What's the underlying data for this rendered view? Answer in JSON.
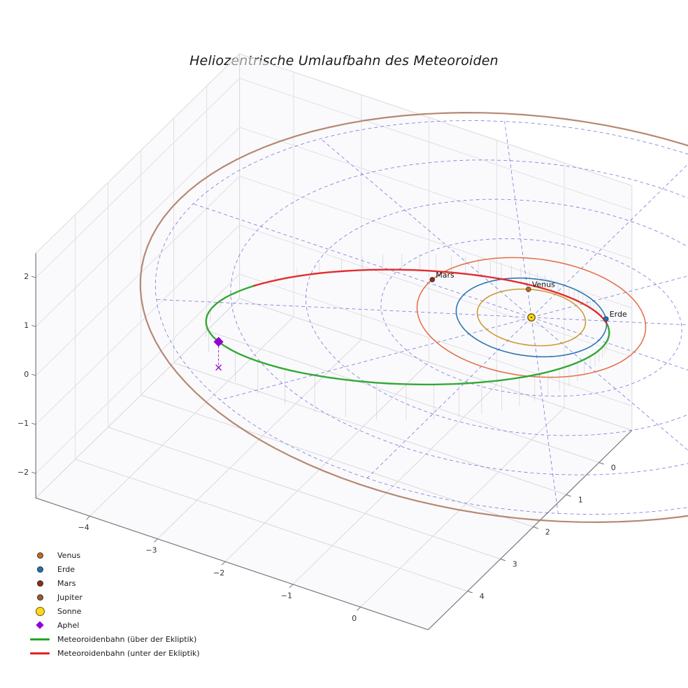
{
  "title": "Heliozentrische Umlaufbahn des Meteoroiden",
  "chart_data": {
    "type": "scatter",
    "subtype": "3d-heliocentric-orbit-plot",
    "title": "Heliozentrische Umlaufbahn des Meteoroiden",
    "axes": {
      "x_ticks": [
        -4,
        -3,
        -2,
        -1,
        0
      ],
      "y_ticks": [
        0,
        1,
        2,
        3,
        4
      ],
      "z_ticks": [
        -2,
        -1,
        0,
        1,
        2
      ],
      "grid": true
    },
    "ecliptic_polar_grid": {
      "circle_radii_au": [
        1,
        2,
        3,
        4,
        5
      ],
      "n_spokes": 12,
      "color": "#3a3ad0",
      "style": "dashed"
    },
    "planet_orbits": [
      {
        "name": "Venus",
        "radius_au": 0.72,
        "color": "#c9952c",
        "marker_color": "#c06a20",
        "marker_angle_deg": 241,
        "label": "Venus"
      },
      {
        "name": "Erde",
        "radius_au": 1.0,
        "color": "#2271b3",
        "marker_color": "#2271b3",
        "marker_angle_deg": 327,
        "label": "Erde"
      },
      {
        "name": "Mars",
        "radius_au": 1.52,
        "color": "#e46a44",
        "marker_color": "#8c2d1b",
        "marker_angle_deg": 184,
        "label": "Mars"
      },
      {
        "name": "Jupiter",
        "radius_au": 5.2,
        "color": "#b2826b",
        "marker_color": "#9c5a32",
        "marker_angle_deg": null,
        "label": null
      }
    ],
    "sun": {
      "label": "Sonne",
      "color": "#ffd81e",
      "edge_color": "#6b5900"
    },
    "meteoroid_orbit": {
      "a_au": 2.8,
      "e": 0.655,
      "inclination_deg": 14,
      "ascending_node_deg": -24,
      "arg_perihelion_deg": -28,
      "above_color": "#28a428",
      "below_color": "#e32222",
      "above_label": "Meteoroidenbahn (über der Ekliptik)",
      "below_label": "Meteoroidenbahn (unter der Ekliptik)"
    },
    "aphel": {
      "label": "Aphel",
      "color": "#9400d3"
    }
  },
  "legend": {
    "items": [
      {
        "label": "Venus",
        "type": "dot",
        "color": "#c06a20"
      },
      {
        "label": "Erde",
        "type": "dot",
        "color": "#2271b3"
      },
      {
        "label": "Mars",
        "type": "dot",
        "color": "#8c2d1b"
      },
      {
        "label": "Jupiter",
        "type": "dot",
        "color": "#9c5a32"
      },
      {
        "label": "Sonne",
        "type": "dot-large",
        "color": "#ffd81e"
      },
      {
        "label": "Aphel",
        "type": "diamond",
        "color": "#9400d3"
      },
      {
        "label": "Meteoroidenbahn (über der Ekliptik)",
        "type": "line",
        "color": "#28a428"
      },
      {
        "label": "Meteoroidenbahn (unter der Ekliptik)",
        "type": "line",
        "color": "#e32222"
      }
    ]
  }
}
